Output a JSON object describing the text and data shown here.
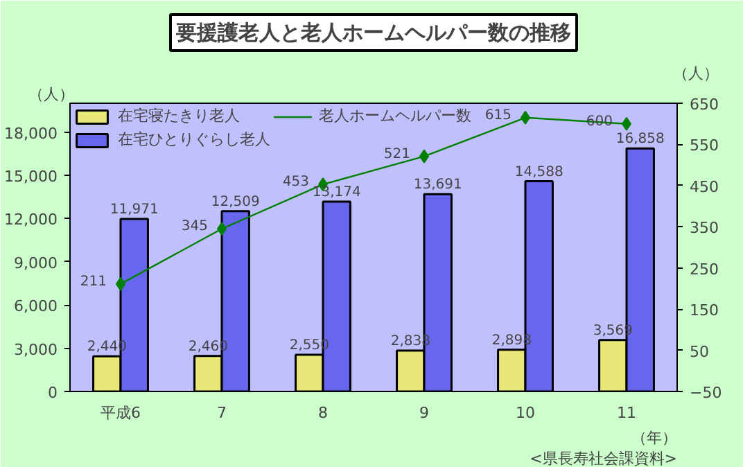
{
  "chart_data": {
    "type": "bar",
    "title": "要援護老人と老人ホームヘルパー数の推移",
    "xlabel": "（年）",
    "ylabel": "（人）",
    "y2label": "（人）",
    "categories": [
      "平成6",
      "7",
      "8",
      "9",
      "10",
      "11"
    ],
    "series": [
      {
        "name": "在宅寝たきり老人",
        "color": "#e8e878",
        "values": [
          2440,
          2460,
          2550,
          2838,
          2898,
          3569
        ],
        "value_labels": [
          "2,440",
          "2,460",
          "2,550",
          "2,838",
          "2,898",
          "3,569"
        ]
      },
      {
        "name": "在宅ひとりぐらし老人",
        "color": "#6666ee",
        "values": [
          11971,
          12509,
          13174,
          13691,
          14588,
          16858
        ],
        "value_labels": [
          "11,971",
          "12,509",
          "13,174",
          "13,691",
          "14,588",
          "16,858"
        ]
      },
      {
        "name": "老人ホームヘルパー数",
        "type": "line",
        "axis": "y2",
        "color": "#008000",
        "values": [
          211,
          345,
          453,
          521,
          615,
          600
        ],
        "value_labels": [
          "211",
          "345",
          "453",
          "521",
          "615",
          "600"
        ],
        "marker": "diamond"
      }
    ],
    "ylim": [
      0,
      20000
    ],
    "yticks": [
      {
        "value": 0,
        "label": "0"
      },
      {
        "value": 3000,
        "label": "3,000"
      },
      {
        "value": 6000,
        "label": "6,000"
      },
      {
        "value": 9000,
        "label": "9,000"
      },
      {
        "value": 12000,
        "label": "12,000"
      },
      {
        "value": 15000,
        "label": "15,000"
      },
      {
        "value": 18000,
        "label": "18,000"
      }
    ],
    "y2lim": [
      -50,
      650
    ],
    "y2ticks": [
      -50,
      50,
      150,
      250,
      350,
      450,
      550,
      650
    ],
    "grid": false,
    "legend": "top left",
    "annotations": [
      "<県長寿社会課資料>"
    ]
  }
}
